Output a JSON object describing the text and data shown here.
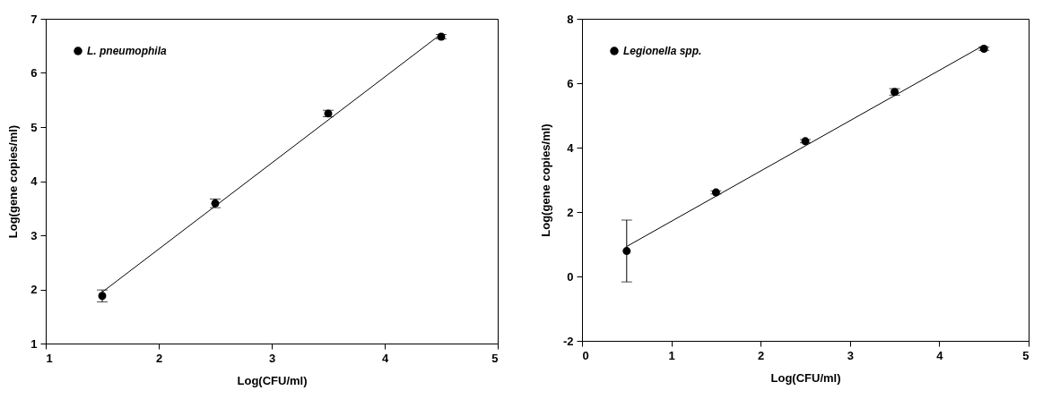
{
  "chart_data": [
    {
      "type": "scatter",
      "xlabel": "Log(CFU/ml)",
      "ylabel": "Log(gene copies/ml)",
      "xlim": [
        1,
        5
      ],
      "ylim": [
        1,
        7
      ],
      "xticks": [
        1,
        2,
        3,
        4,
        5
      ],
      "yticks": [
        1,
        2,
        3,
        4,
        5,
        6,
        7
      ],
      "grid": false,
      "legend": "top left",
      "series": [
        {
          "name": "L. pneumophila",
          "color": "#000000",
          "marker": "circle",
          "x": [
            1.5,
            2.5,
            3.5,
            4.5
          ],
          "values": [
            1.88,
            3.59,
            5.25,
            6.67
          ],
          "errors": [
            0.11,
            0.08,
            0.06,
            0.04
          ]
        },
        {
          "type": "line",
          "color": "#000000",
          "x": [
            1.5,
            4.5
          ],
          "values": [
            1.95,
            6.72
          ]
        }
      ]
    },
    {
      "type": "scatter",
      "xlabel": "Log(CFU/ml)",
      "ylabel": "Log(gene copies/ml)",
      "xlim": [
        0,
        5
      ],
      "ylim": [
        -2,
        8
      ],
      "xticks": [
        0,
        1,
        2,
        3,
        4,
        5
      ],
      "yticks": [
        -2,
        0,
        2,
        4,
        6,
        8
      ],
      "grid": false,
      "legend": "top left",
      "series": [
        {
          "name": "Legionella spp.",
          "color": "#000000",
          "marker": "circle",
          "x": [
            0.5,
            1.5,
            2.5,
            3.5,
            4.5
          ],
          "values": [
            0.79,
            2.61,
            4.2,
            5.73,
            7.07
          ],
          "errors": [
            0.96,
            0.05,
            0.05,
            0.1,
            0.05
          ]
        },
        {
          "type": "line",
          "color": "#000000",
          "x": [
            0.5,
            4.5
          ],
          "values": [
            0.93,
            7.18
          ]
        }
      ]
    }
  ]
}
